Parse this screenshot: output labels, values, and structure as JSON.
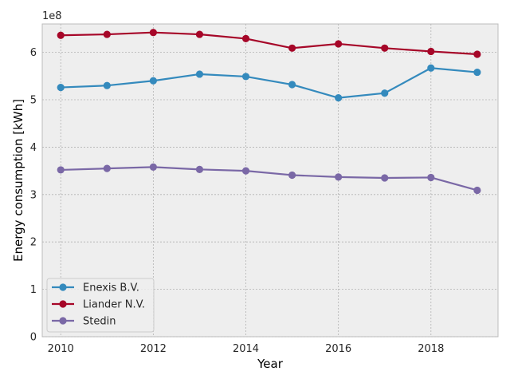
{
  "chart_data": {
    "type": "line",
    "title": "",
    "xlabel": "Year",
    "ylabel": "Energy consumption [kWh]",
    "y_offset_text": "1e8",
    "y_scale_factor": 100000000,
    "xlim": [
      2009.6,
      2019.45
    ],
    "ylim": [
      0,
      660000000
    ],
    "x_ticks": [
      2010,
      2012,
      2014,
      2016,
      2018
    ],
    "y_ticks": [
      0,
      1,
      2,
      3,
      4,
      5,
      6
    ],
    "grid": true,
    "legend_position": "lower-left",
    "x": [
      2010,
      2011,
      2012,
      2013,
      2014,
      2015,
      2016,
      2017,
      2018,
      2019
    ],
    "series": [
      {
        "name": "Enexis B.V.",
        "color": "#348abd",
        "values": [
          526000000,
          530000000,
          540000000,
          554000000,
          549000000,
          532000000,
          504000000,
          514000000,
          567000000,
          558000000
        ]
      },
      {
        "name": "Liander N.V.",
        "color": "#a60628",
        "values": [
          636000000,
          638000000,
          642000000,
          638000000,
          629000000,
          609000000,
          618000000,
          609000000,
          602000000,
          596000000
        ]
      },
      {
        "name": "Stedin",
        "color": "#7a68a6",
        "values": [
          352000000,
          355000000,
          358000000,
          353000000,
          350000000,
          341000000,
          337000000,
          335000000,
          336000000,
          309000000
        ]
      }
    ]
  }
}
